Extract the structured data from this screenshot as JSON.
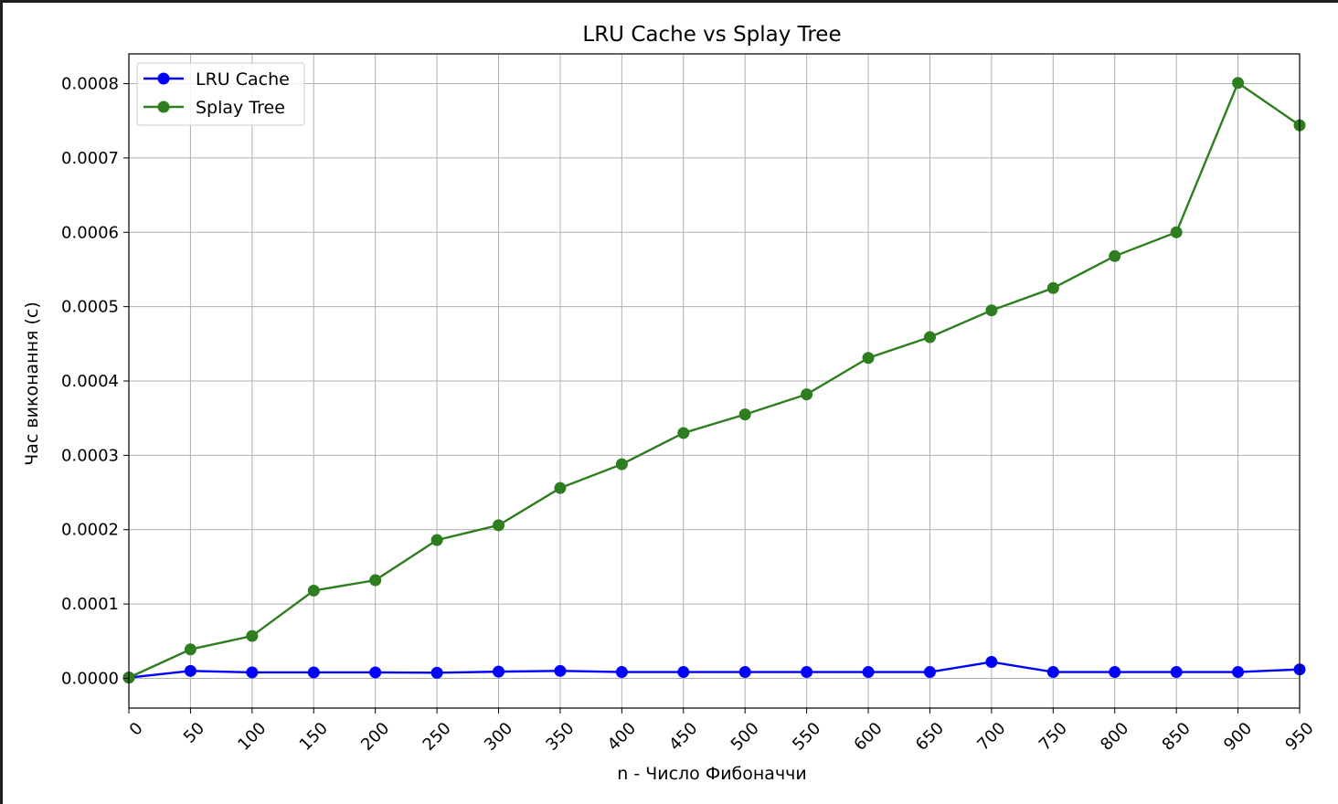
{
  "chart_data": {
    "type": "line",
    "title": "LRU Cache vs Splay Tree",
    "xlabel": "n - Число Фибоначчи",
    "ylabel": "Час виконання (с)",
    "x": [
      0,
      50,
      100,
      150,
      200,
      250,
      300,
      350,
      400,
      450,
      500,
      550,
      600,
      650,
      700,
      750,
      800,
      850,
      900,
      950
    ],
    "xticks": [
      "0",
      "50",
      "100",
      "150",
      "200",
      "250",
      "300",
      "350",
      "400",
      "450",
      "500",
      "550",
      "600",
      "650",
      "700",
      "750",
      "800",
      "850",
      "900",
      "950"
    ],
    "yticks": [
      "0.0000",
      "0.0001",
      "0.0002",
      "0.0003",
      "0.0004",
      "0.0005",
      "0.0006",
      "0.0007",
      "0.0008"
    ],
    "xlim": [
      0,
      950
    ],
    "ylim": [
      -4e-05,
      0.00084
    ],
    "grid": true,
    "legend_position": "top-left",
    "series": [
      {
        "name": "LRU Cache",
        "color": "#0000ff",
        "values": [
          1e-06,
          1e-05,
          8e-06,
          8e-06,
          8e-06,
          7.5e-06,
          9e-06,
          1e-05,
          8.5e-06,
          8.5e-06,
          8.5e-06,
          8.5e-06,
          8.5e-06,
          8.5e-06,
          2.2e-05,
          8.5e-06,
          8.5e-06,
          8.5e-06,
          8.5e-06,
          1.2e-05
        ]
      },
      {
        "name": "Splay Tree",
        "color": "#2e7d1e",
        "values": [
          1e-06,
          3.9e-05,
          5.7e-05,
          0.000118,
          0.000132,
          0.000186,
          0.000206,
          0.000256,
          0.000288,
          0.00033,
          0.000355,
          0.000382,
          0.000431,
          0.000459,
          0.000495,
          0.000525,
          0.000568,
          0.0006,
          0.000801,
          0.000744
        ]
      }
    ]
  }
}
